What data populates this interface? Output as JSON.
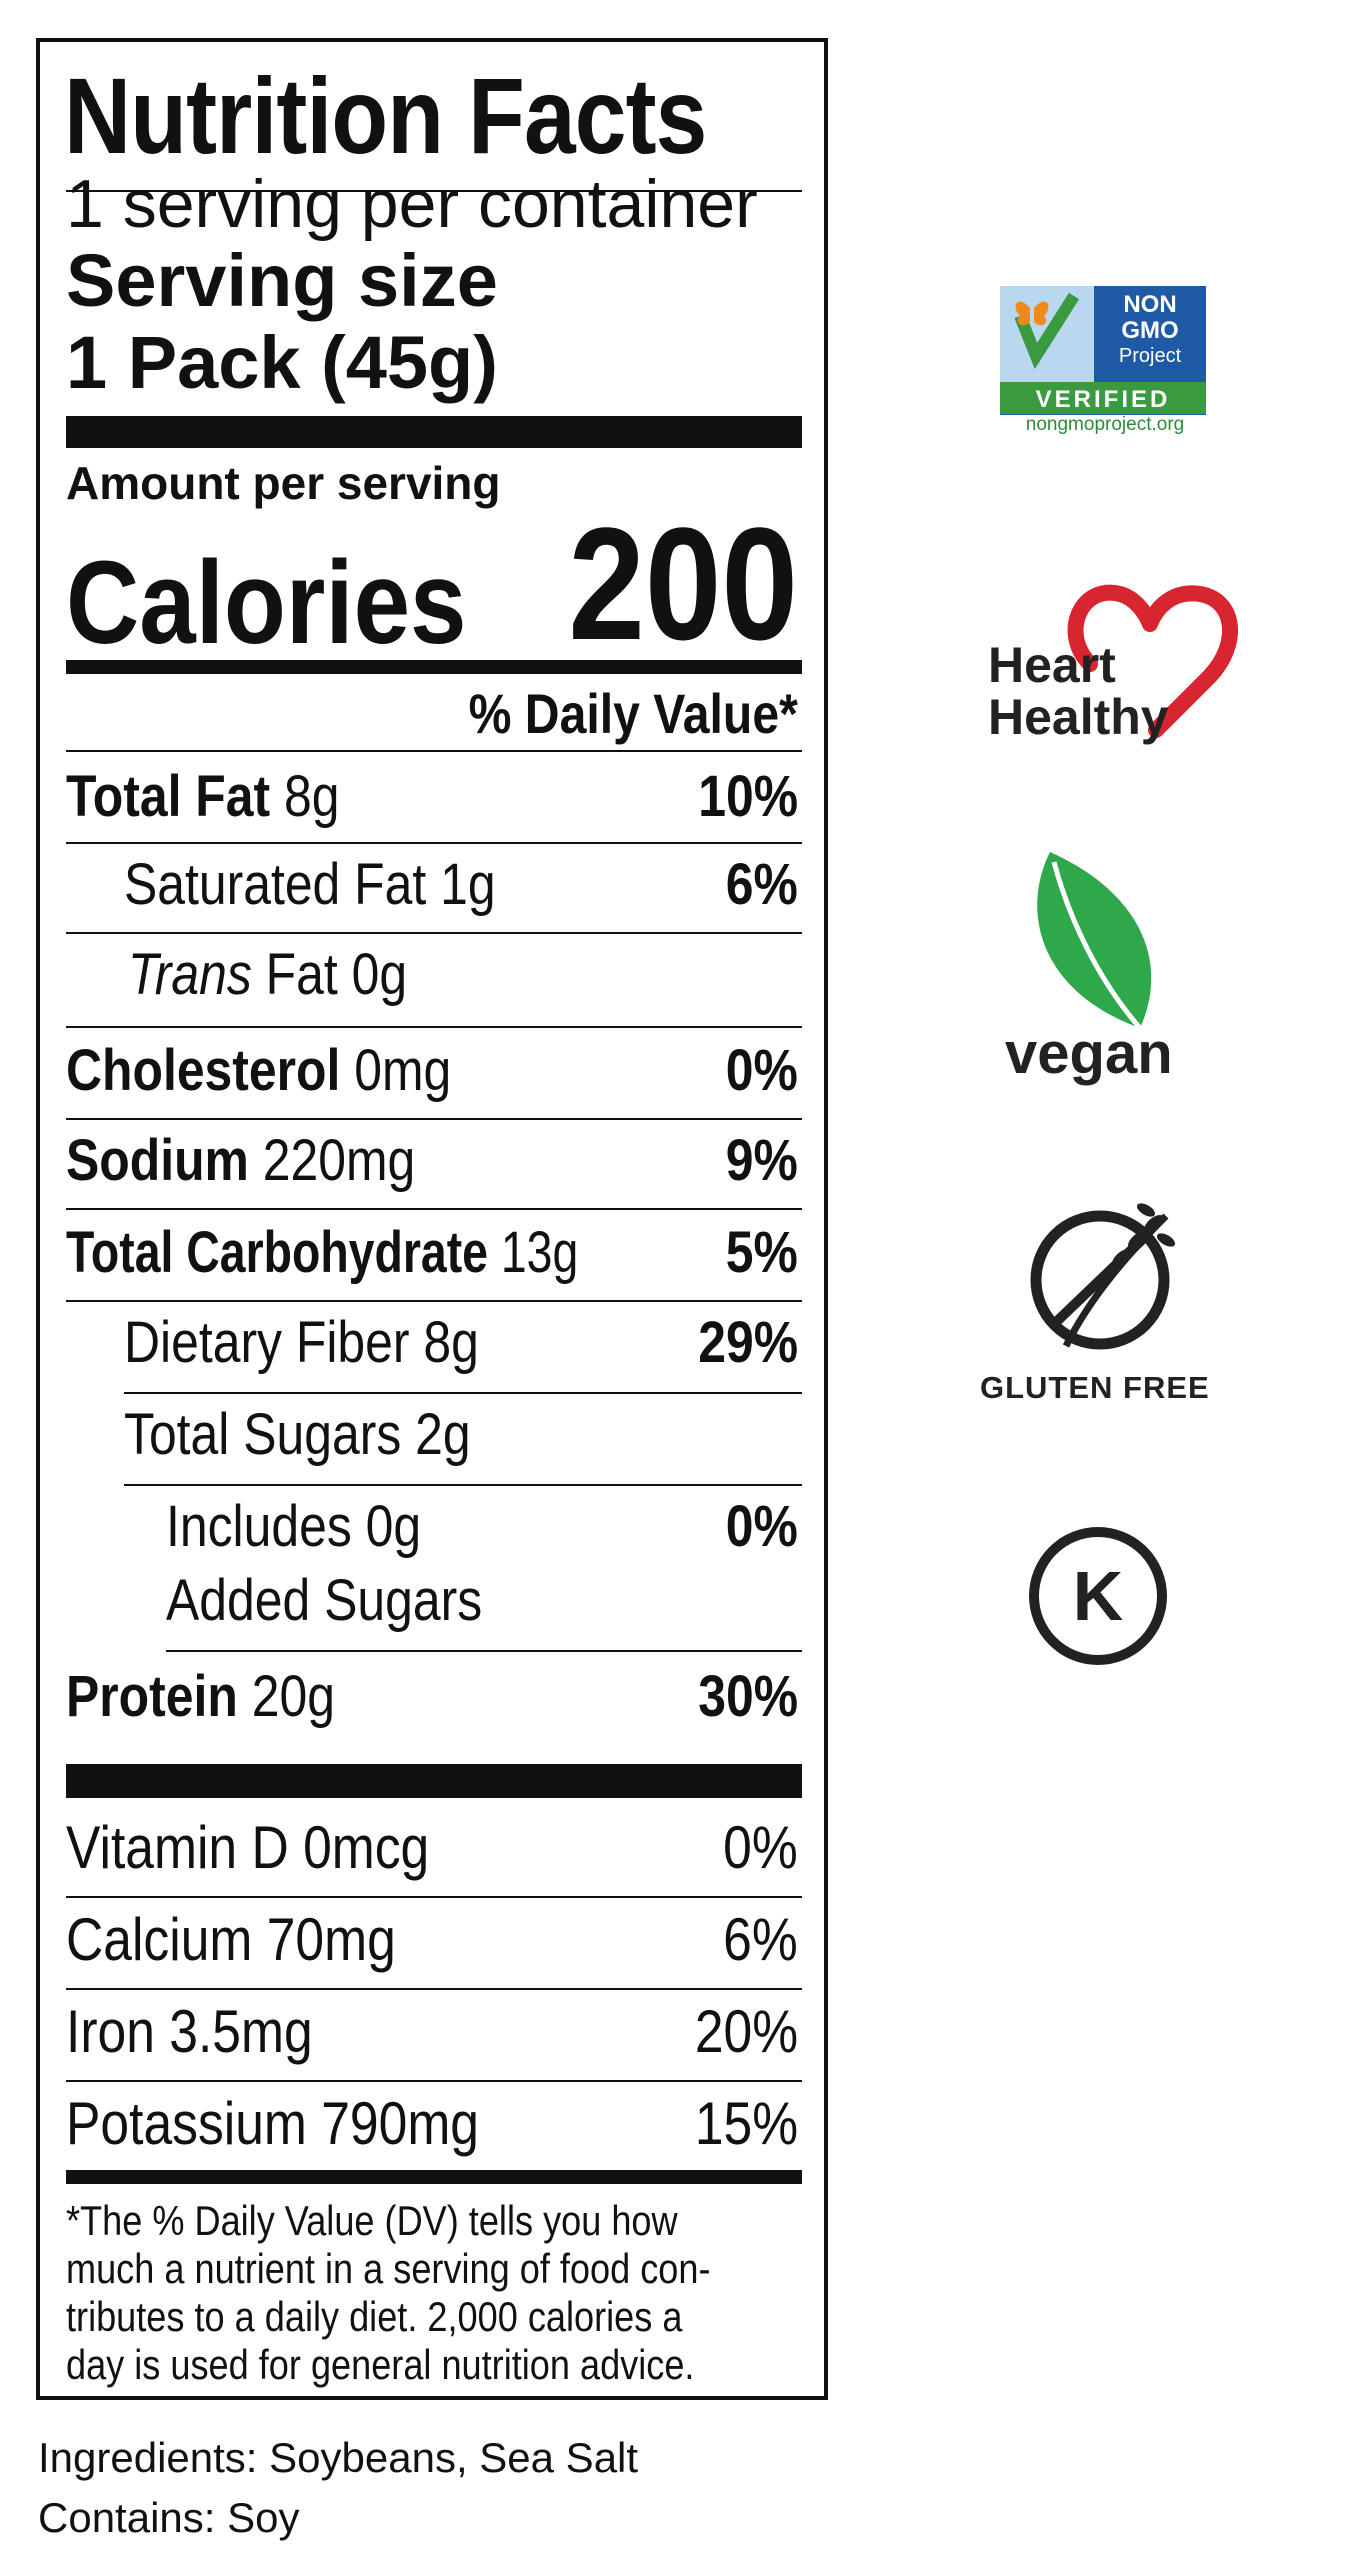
{
  "label": {
    "title": "Nutrition Facts",
    "servings": "1 serving per container",
    "serving_size_label": "Serving size",
    "serving_size_value": "1 Pack (45g)",
    "amount_per_serving": "Amount per serving",
    "calories_label": "Calories",
    "calories_value": "200",
    "daily_value_header": "% Daily Value*",
    "nutrients": [
      {
        "name": "Total Fat",
        "amount": "8g",
        "dv": "10%"
      },
      {
        "name": "Saturated Fat",
        "amount": "1g",
        "dv": "6%"
      },
      {
        "name_italic": "Trans",
        "name": "Fat",
        "amount": "0g",
        "dv": ""
      },
      {
        "name": "Cholesterol",
        "amount": "0mg",
        "dv": "0%"
      },
      {
        "name": "Sodium",
        "amount": "220mg",
        "dv": "9%"
      },
      {
        "name": "Total Carbohydrate",
        "amount": "13g",
        "dv": "5%"
      },
      {
        "name": "Dietary Fiber",
        "amount": "8g",
        "dv": "29%"
      },
      {
        "name": "Total Sugars",
        "amount": "2g",
        "dv": ""
      },
      {
        "line1": "Includes 0g",
        "line2": "Added Sugars",
        "dv": "0%"
      },
      {
        "name": "Protein",
        "amount": "20g",
        "dv": "30%"
      }
    ],
    "vitamins": [
      {
        "text": "Vitamin D 0mcg",
        "dv": "0%"
      },
      {
        "text": "Calcium 70mg",
        "dv": "6%"
      },
      {
        "text": "Iron 3.5mg",
        "dv": "20%"
      },
      {
        "text": "Potassium 790mg",
        "dv": "15%"
      }
    ],
    "footnote": [
      "*The % Daily Value (DV) tells you how",
      "much a nutrient in a serving of food con-",
      "tributes to a daily diet. 2,000 calories a",
      "day is used for general nutrition advice."
    ]
  },
  "ingredients": "Ingredients: Soybeans, Sea Salt",
  "contains": "Contains: Soy",
  "badges": {
    "non_gmo": {
      "line1": "NON",
      "line2": "GMO",
      "line3": "Project",
      "verified": "VERIFIED",
      "url": "nongmoproject.org",
      "blue": "#1f5aa6",
      "green": "#3a9a3f",
      "orange": "#f08a1c"
    },
    "heart": {
      "line1": "Heart",
      "line2": "Healthy",
      "color": "#d7262f"
    },
    "vegan": {
      "text": "vegan",
      "color": "#2ea84a"
    },
    "gluten_free": {
      "text": "GLUTEN FREE"
    },
    "kosher": {
      "letter": "K"
    }
  }
}
